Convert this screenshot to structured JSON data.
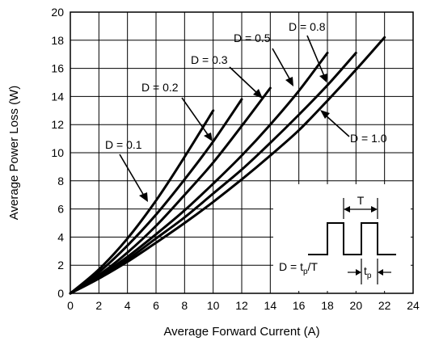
{
  "chart_data": {
    "type": "line",
    "xlabel": "Average Forward Current (A)",
    "ylabel": "Average Power Loss (W)",
    "xlim": [
      0,
      24
    ],
    "ylim": [
      0,
      20
    ],
    "xticks": [
      "0",
      "2",
      "4",
      "6",
      "8",
      "10",
      "12",
      "14",
      "16",
      "18",
      "20",
      "22",
      "24"
    ],
    "yticks": [
      "0",
      "2",
      "4",
      "6",
      "8",
      "10",
      "12",
      "14",
      "16",
      "18",
      "20"
    ],
    "grid": true,
    "series": [
      {
        "name": "D = 0.1",
        "x": [
          0,
          2,
          4,
          6,
          8,
          10
        ],
        "y": [
          0,
          1.7,
          3.9,
          6.6,
          9.7,
          13.0
        ]
      },
      {
        "name": "D = 0.2",
        "x": [
          0,
          2,
          4,
          6,
          8,
          10,
          12
        ],
        "y": [
          0,
          1.5,
          3.4,
          5.6,
          8.1,
          10.8,
          13.8
        ]
      },
      {
        "name": "D = 0.3",
        "x": [
          0,
          2,
          4,
          6,
          8,
          10,
          12,
          14
        ],
        "y": [
          0,
          1.3,
          2.9,
          4.8,
          7.0,
          9.3,
          11.9,
          14.6
        ]
      },
      {
        "name": "D = 0.5",
        "x": [
          0,
          2,
          4,
          6,
          8,
          10,
          12,
          14,
          16,
          18
        ],
        "y": [
          0,
          1.2,
          2.6,
          4.2,
          5.9,
          7.8,
          9.8,
          12.0,
          14.4,
          17.1
        ]
      },
      {
        "name": "D = 0.8",
        "x": [
          0,
          2,
          4,
          6,
          8,
          10,
          12,
          14,
          16,
          18,
          20
        ],
        "y": [
          0,
          1.1,
          2.4,
          3.9,
          5.4,
          7.1,
          8.8,
          10.7,
          12.7,
          14.8,
          17.1
        ]
      },
      {
        "name": "D = 1.0",
        "x": [
          0,
          2,
          4,
          6,
          8,
          10,
          12,
          14,
          16,
          18,
          20,
          22
        ],
        "y": [
          0,
          1.05,
          2.25,
          3.6,
          5.0,
          6.5,
          8.1,
          9.8,
          11.6,
          13.7,
          15.9,
          18.2
        ]
      }
    ],
    "inset": {
      "period_label": "T",
      "pulse_label": "t",
      "pulse_subscript": "p",
      "formula_prefix": "D = t",
      "formula_subscript": "p",
      "formula_suffix": "/T"
    }
  }
}
